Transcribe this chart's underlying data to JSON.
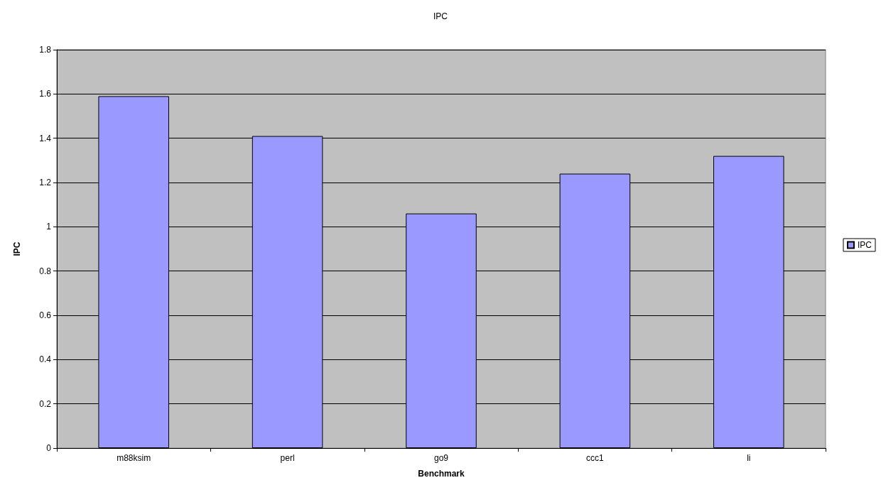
{
  "chart_data": {
    "type": "bar",
    "title": "IPC",
    "xlabel": "Benchmark",
    "ylabel": "IPC",
    "categories": [
      "m88ksim",
      "perl",
      "go9",
      "ccc1",
      "li"
    ],
    "series": [
      {
        "name": "IPC",
        "color": "#9999ff",
        "values": [
          1.59,
          1.41,
          1.06,
          1.24,
          1.32
        ]
      }
    ],
    "ylim": [
      0,
      1.8
    ],
    "yticks": [
      0,
      0.2,
      0.4,
      0.6,
      0.8,
      1,
      1.2,
      1.4,
      1.6,
      1.8
    ],
    "grid": "y",
    "legend": "right"
  }
}
